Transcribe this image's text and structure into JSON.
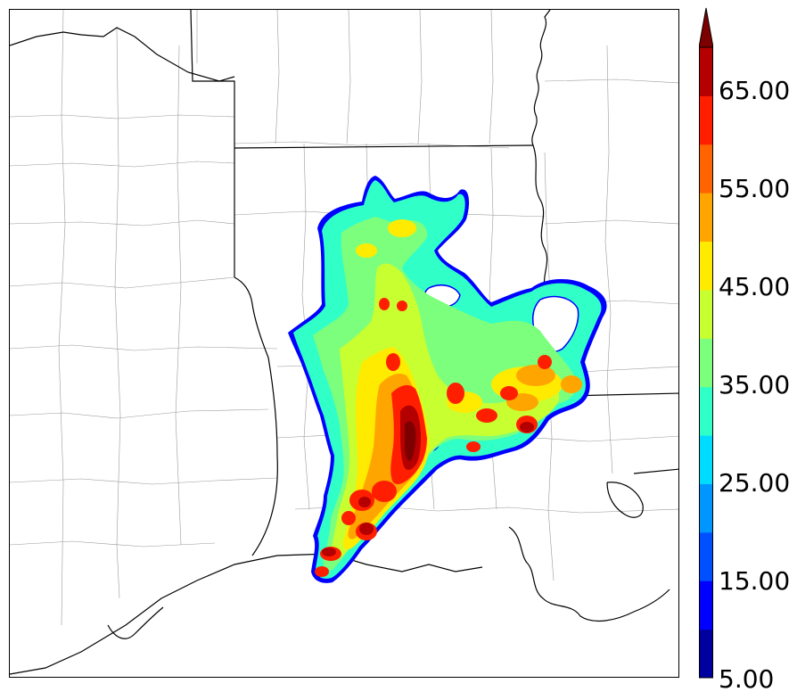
{
  "colorbar": {
    "labels": [
      "5.00",
      "15.00",
      "25.00",
      "35.00",
      "45.00",
      "55.00",
      "65.00"
    ],
    "levels": [
      5,
      10,
      15,
      20,
      25,
      30,
      35,
      40,
      45,
      50,
      55,
      60,
      65,
      70
    ],
    "colors": [
      "#00009e",
      "#0000ff",
      "#0050ff",
      "#0096ff",
      "#00dcff",
      "#30ffc8",
      "#7cff7c",
      "#c8ff30",
      "#ffeb00",
      "#ffa500",
      "#ff6400",
      "#ff1e00",
      "#b40000",
      "#7d0000"
    ],
    "extend": "max"
  },
  "map": {
    "boundary_colors": {
      "state": "#000000",
      "county": "#9a9a9a"
    }
  }
}
